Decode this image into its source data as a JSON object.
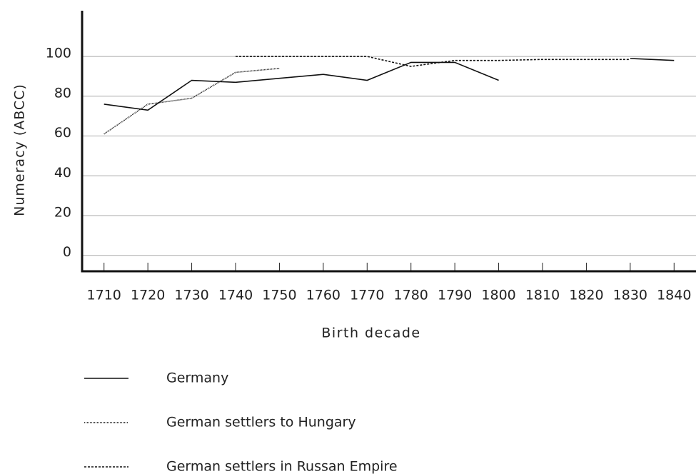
{
  "chart_data": {
    "type": "line",
    "y_label": "Numeracy (ABCC)",
    "x_label": "Birth decade",
    "x": [
      1710,
      1720,
      1730,
      1740,
      1750,
      1760,
      1770,
      1780,
      1790,
      1800,
      1810,
      1820,
      1830,
      1840
    ],
    "xlim": [
      1705,
      1845
    ],
    "xticks": [
      1710,
      1720,
      1730,
      1740,
      1750,
      1760,
      1770,
      1780,
      1790,
      1800,
      1810,
      1820,
      1830,
      1840
    ],
    "ylim": [
      -8,
      123
    ],
    "yticks": [
      0,
      20,
      40,
      60,
      80,
      100
    ],
    "grid": true,
    "series": [
      {
        "name": "Germany",
        "color": "#111111",
        "dash": "none",
        "values": [
          76,
          73,
          88,
          87,
          89,
          91,
          88,
          97,
          97,
          88,
          null,
          null,
          99,
          98
        ]
      },
      {
        "name": "German settlers to Hungary",
        "color": "#111111",
        "dash": "1 1",
        "values": [
          61,
          76,
          79,
          92,
          94,
          null,
          null,
          null,
          null,
          null,
          null,
          null,
          null,
          null
        ]
      },
      {
        "name": "German settlers in Russan Empire",
        "color": "#111111",
        "dash": "3 2",
        "values": [
          null,
          null,
          null,
          100,
          100,
          100,
          100,
          95,
          98,
          98,
          98.5,
          98.5,
          98.5,
          null
        ]
      }
    ]
  }
}
